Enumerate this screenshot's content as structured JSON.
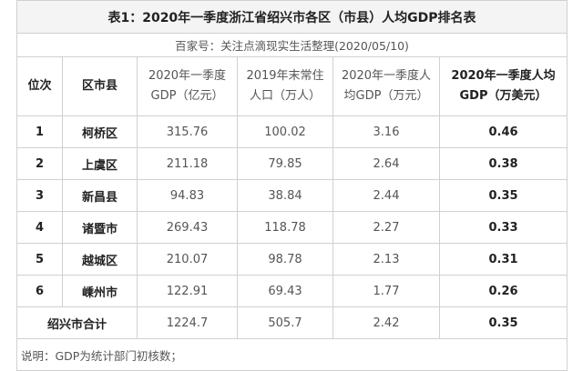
{
  "title": "表1：2020年一季度浙江省绍兴市各区（市县）人均GDP排名表",
  "subtitle": "百家号：关注点滴现实生活整理(2020/05/10)",
  "headers": [
    "位次",
    "区市县",
    "2020年一季度GDP（亿元）",
    "2019年末常住人口（万人）",
    "2020年一季度人均GDP（万元）",
    "2020年一季度人均GDP（万美元）"
  ],
  "rows": [
    [
      1,
      "柯桥区",
      315.76,
      100.02,
      3.16,
      0.46
    ],
    [
      2,
      "上虞区",
      211.18,
      79.85,
      2.64,
      0.38
    ],
    [
      3,
      "新昌县",
      94.83,
      38.84,
      2.44,
      0.35
    ],
    [
      4,
      "诸暨市",
      269.43,
      118.78,
      2.27,
      0.33
    ],
    [
      5,
      "越城区",
      210.07,
      98.78,
      2.13,
      0.31
    ],
    [
      6,
      "嵊州市",
      122.91,
      69.43,
      1.77,
      0.26
    ]
  ],
  "total": {
    "label": "绍兴市合计",
    "values": [
      1224.7,
      505.7,
      2.42,
      0.35
    ]
  },
  "note": "说明：GDP为统计部门初核数；"
}
